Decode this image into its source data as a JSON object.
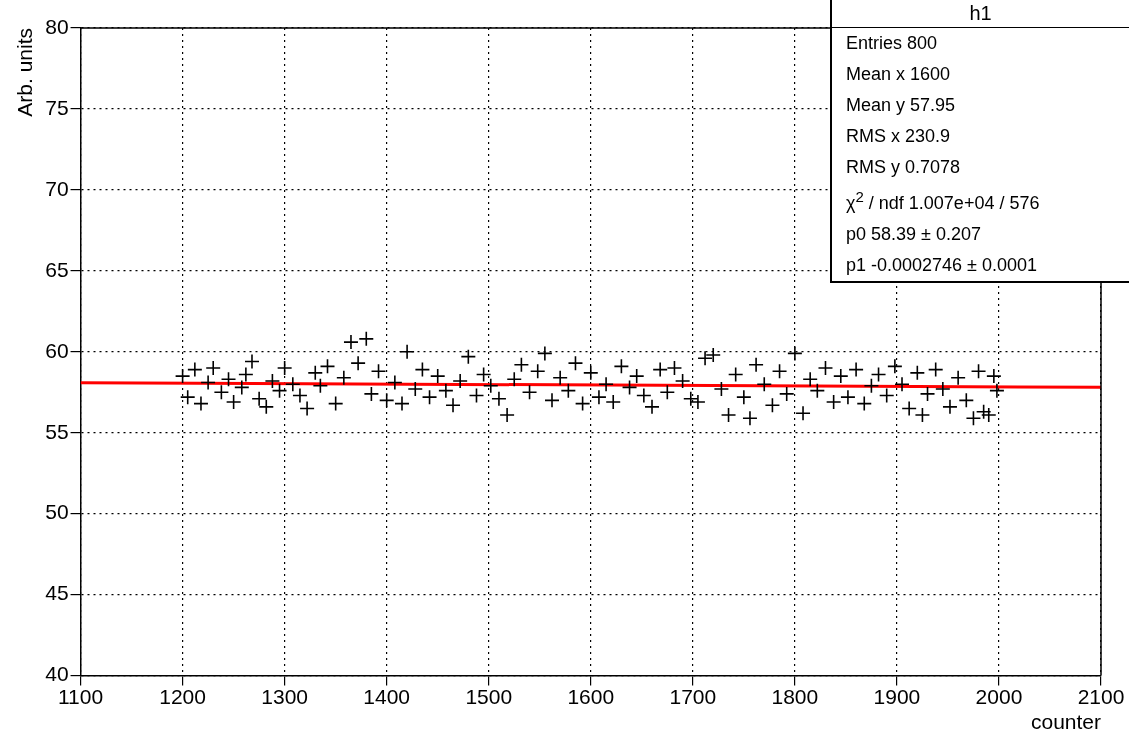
{
  "chart_data": {
    "type": "scatter",
    "xlabel": "counter",
    "ylabel": "Arb. units",
    "xlim": [
      1100,
      2100
    ],
    "xticks": [
      1100,
      1200,
      1300,
      1400,
      1500,
      1600,
      1700,
      1800,
      1900,
      2000,
      2100
    ],
    "ylim": [
      40,
      80
    ],
    "yticks": [
      40,
      45,
      50,
      55,
      60,
      65,
      70,
      75,
      80
    ],
    "grid": true,
    "legend": false,
    "annotations": [
      "h1",
      "Entries 800",
      "Mean x 1600",
      "Mean y 57.95",
      "RMS x 230.9",
      "RMS y 0.7078",
      "χ$^{2}$ / ndf 1.007e+04 / 576",
      "p0 58.39 ± 0.207",
      "p1 -0.0002746 ± 0.0001"
    ],
    "series": [
      {
        "type": "scatter",
        "marker": "cross",
        "color": "#000000",
        "x": [
          1200,
          1205,
          1212,
          1218,
          1225,
          1230,
          1238,
          1245,
          1250,
          1258,
          1262,
          1268,
          1275,
          1282,
          1288,
          1295,
          1300,
          1308,
          1315,
          1322,
          1330,
          1335,
          1342,
          1350,
          1358,
          1365,
          1372,
          1380,
          1385,
          1392,
          1400,
          1408,
          1415,
          1420,
          1428,
          1435,
          1442,
          1450,
          1458,
          1465,
          1472,
          1480,
          1488,
          1495,
          1502,
          1510,
          1518,
          1525,
          1532,
          1540,
          1548,
          1555,
          1562,
          1570,
          1578,
          1585,
          1592,
          1600,
          1608,
          1615,
          1622,
          1630,
          1638,
          1645,
          1652,
          1660,
          1668,
          1675,
          1682,
          1690,
          1698,
          1705,
          1712,
          1720,
          1728,
          1735,
          1742,
          1750,
          1756,
          1762,
          1770,
          1778,
          1785,
          1792,
          1800,
          1808,
          1815,
          1822,
          1830,
          1838,
          1845,
          1852,
          1860,
          1868,
          1875,
          1882,
          1890,
          1898,
          1905,
          1912,
          1920,
          1925,
          1930,
          1938,
          1945,
          1952,
          1960,
          1968,
          1975,
          1980,
          1985,
          1990,
          1995,
          1998
        ],
        "values": [
          58.5,
          57.2,
          58.9,
          56.8,
          58.1,
          59.0,
          57.5,
          58.3,
          56.9,
          57.8,
          58.6,
          59.4,
          57.1,
          56.6,
          58.2,
          57.6,
          59.0,
          58.0,
          57.3,
          56.5,
          58.7,
          57.9,
          59.1,
          56.8,
          58.4,
          60.6,
          59.3,
          60.8,
          57.4,
          58.8,
          57.0,
          58.1,
          56.8,
          60.0,
          57.7,
          58.9,
          57.2,
          58.5,
          57.6,
          56.7,
          58.2,
          59.7,
          57.3,
          58.6,
          57.9,
          57.1,
          56.1,
          58.3,
          59.2,
          57.5,
          58.8,
          59.9,
          57.0,
          58.4,
          57.6,
          59.3,
          56.8,
          58.7,
          57.2,
          58.0,
          56.9,
          59.1,
          57.8,
          58.5,
          57.3,
          56.6,
          58.9,
          57.5,
          59.0,
          58.2,
          57.1,
          56.9,
          59.6,
          59.8,
          57.7,
          56.1,
          58.6,
          57.2,
          55.9,
          59.2,
          58.0,
          56.7,
          58.8,
          57.4,
          59.9,
          56.2,
          58.3,
          57.6,
          59.0,
          56.9,
          58.5,
          57.2,
          58.9,
          56.8,
          57.9,
          58.6,
          57.3,
          59.1,
          58.0,
          56.5,
          58.7,
          56.1,
          57.4,
          58.9,
          57.7,
          56.6,
          58.4,
          57.0,
          55.9,
          58.8,
          56.3,
          56.1,
          58.5,
          57.6
        ]
      },
      {
        "type": "line",
        "marker": "none",
        "color": "#ff0000",
        "x": [
          1100,
          2100
        ],
        "values": [
          58.09,
          57.81
        ]
      }
    ]
  }
}
